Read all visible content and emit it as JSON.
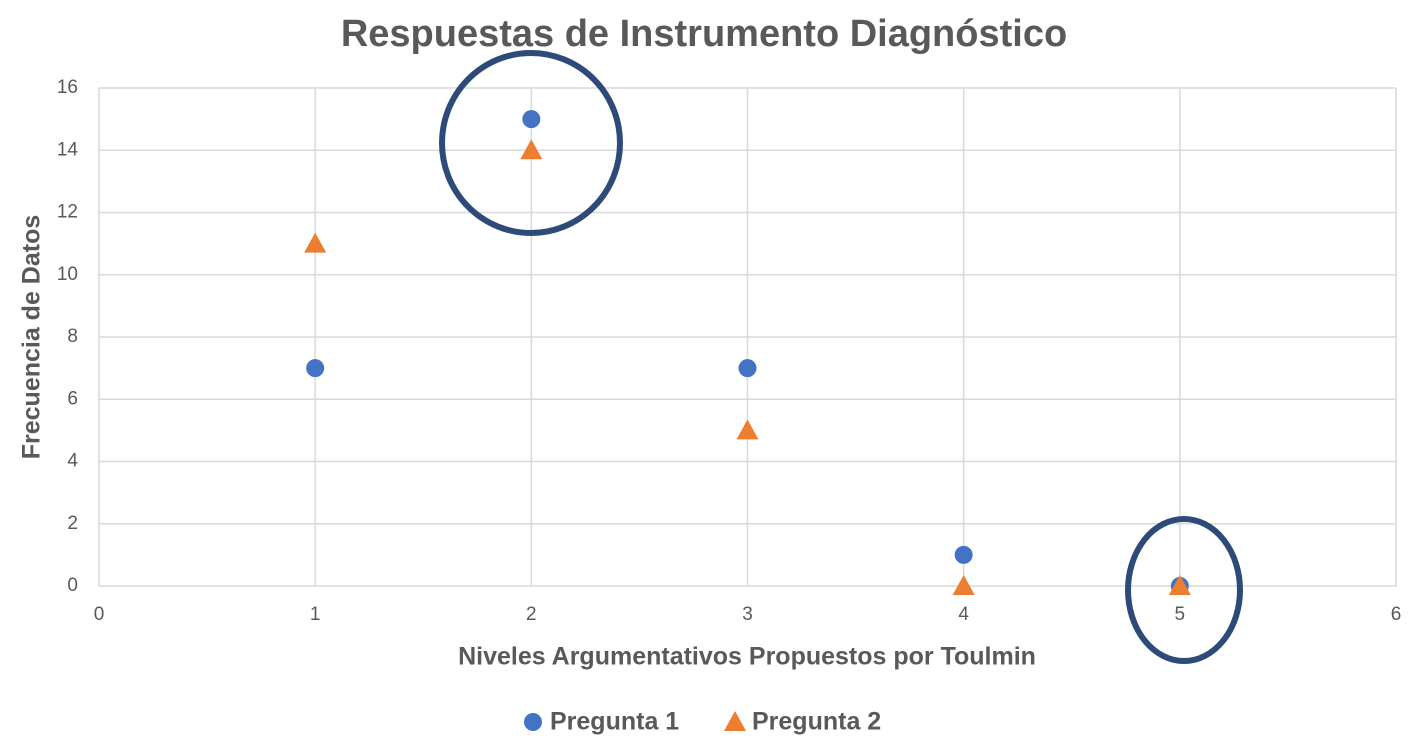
{
  "chart_data": {
    "type": "scatter",
    "title": "Respuestas de Instrumento Diagnóstico",
    "x_label": "Niveles Argumentativos Propuestos por Toulmin",
    "y_label": "Frecuencia de Datos",
    "x": [
      1,
      2,
      3,
      4,
      5
    ],
    "series": [
      {
        "name": "Pregunta 1",
        "color": "#4472c4",
        "marker": "circle",
        "values": [
          7,
          15,
          7,
          1,
          0
        ]
      },
      {
        "name": "Pregunta 2",
        "color": "#ed7d31",
        "marker": "triangle",
        "values": [
          11,
          14,
          5,
          0,
          0
        ]
      }
    ],
    "xlim": [
      0,
      6
    ],
    "xticks": [
      0,
      1,
      2,
      3,
      4,
      5,
      6
    ],
    "ylim": [
      0,
      16
    ],
    "yticks": [
      0,
      2,
      4,
      6,
      8,
      10,
      12,
      14,
      16
    ],
    "grid": true,
    "legend": "bottom"
  }
}
